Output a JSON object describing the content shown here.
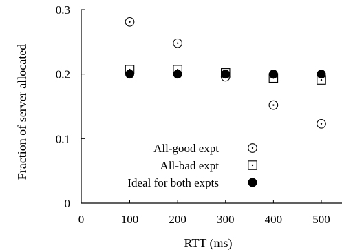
{
  "chart_data": {
    "type": "scatter",
    "xlabel": "RTT (ms)",
    "ylabel": "Fraction of server allocated",
    "xlim": [
      0,
      540
    ],
    "ylim": [
      0,
      0.3
    ],
    "x_ticks": [
      0,
      100,
      200,
      300,
      400,
      500
    ],
    "y_ticks": [
      0,
      0.1,
      0.2,
      0.3
    ],
    "x_tick_labels": [
      "0",
      "100",
      "200",
      "300",
      "400",
      "500"
    ],
    "y_tick_labels": [
      "0",
      "0.1",
      "0.2",
      "0.3"
    ],
    "grid": false,
    "legend_position": "bottom-right",
    "series": [
      {
        "name": "All-good expt",
        "marker": "dotted-circle",
        "x": [
          100,
          200,
          300,
          400,
          500
        ],
        "y": [
          0.281,
          0.248,
          0.196,
          0.152,
          0.123
        ]
      },
      {
        "name": "All-bad expt",
        "marker": "dotted-square",
        "x": [
          100,
          200,
          300,
          400,
          500
        ],
        "y": [
          0.207,
          0.207,
          0.202,
          0.194,
          0.191
        ]
      },
      {
        "name": "Ideal for both expts",
        "marker": "filled-circle",
        "x": [
          100,
          200,
          300,
          400,
          500
        ],
        "y": [
          0.2,
          0.2,
          0.2,
          0.2,
          0.2
        ]
      }
    ]
  }
}
